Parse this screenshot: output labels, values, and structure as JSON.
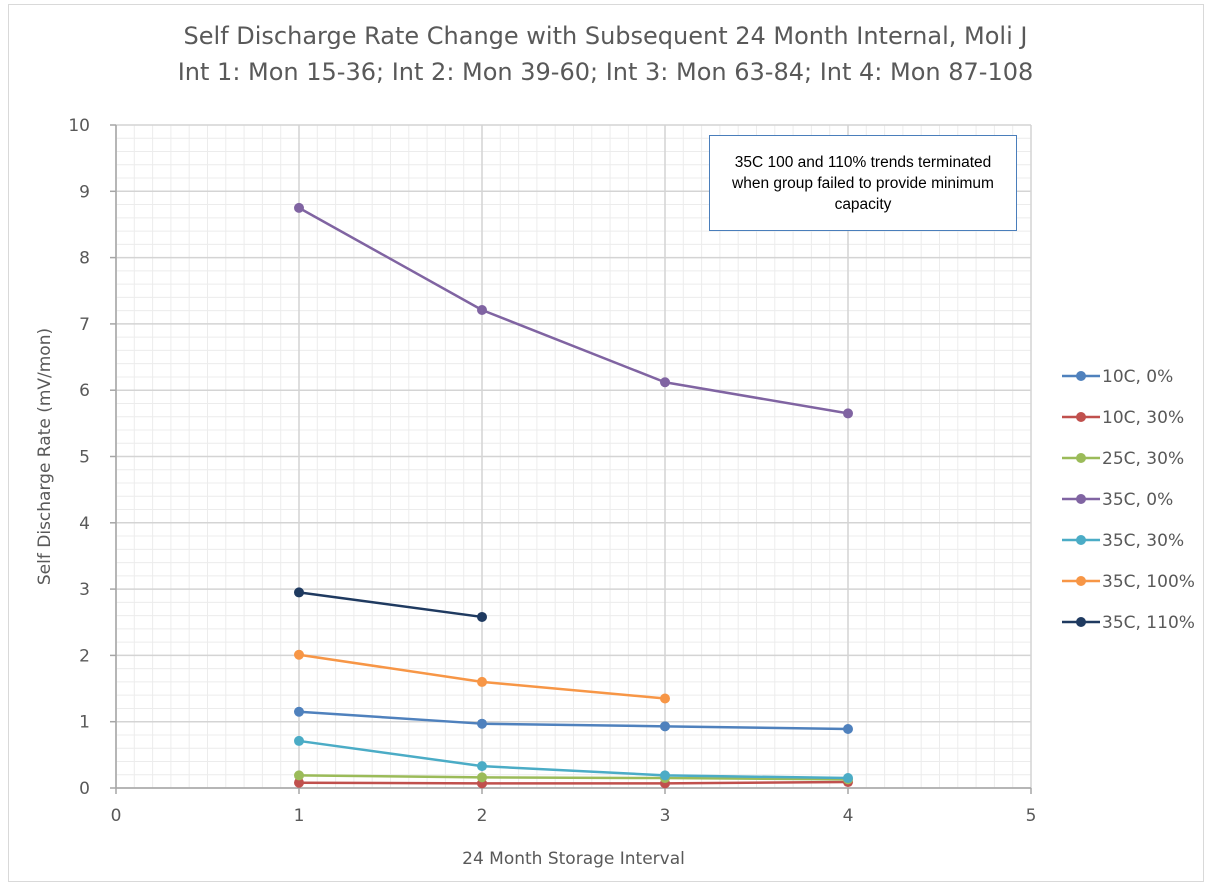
{
  "chart_data": {
    "type": "scatter",
    "title": "Self Discharge Rate Change with Subsequent 24 Month Internal, Moli J",
    "subtitle": "Int 1: Mon 15-36; Int 2: Mon 39-60; Int 3: Mon 63-84; Int 4: Mon 87-108",
    "xlabel": "24 Month Storage Interval",
    "ylabel": "Self Discharge Rate (mV/mon)",
    "xlim": [
      0,
      5
    ],
    "ylim": [
      0,
      10
    ],
    "xticks": [
      0,
      1,
      2,
      3,
      4,
      5
    ],
    "yticks": [
      0,
      1,
      2,
      3,
      4,
      5,
      6,
      7,
      8,
      9,
      10
    ],
    "grid": true,
    "legend_position": "right",
    "annotation": "35C 100 and 110% trends terminated when group failed to provide minimum capacity",
    "series": [
      {
        "name": "10C, 0%",
        "color": "#4f81bd",
        "x": [
          1,
          2,
          3,
          4
        ],
        "y": [
          1.15,
          0.97,
          0.93,
          0.89
        ]
      },
      {
        "name": "10C, 30%",
        "color": "#c0504d",
        "x": [
          1,
          2,
          3,
          4
        ],
        "y": [
          0.08,
          0.07,
          0.07,
          0.09
        ]
      },
      {
        "name": "25C, 30%",
        "color": "#9bbb59",
        "x": [
          1,
          2,
          3,
          4
        ],
        "y": [
          0.19,
          0.16,
          0.15,
          0.13
        ]
      },
      {
        "name": "35C, 0%",
        "color": "#8064a2",
        "x": [
          1,
          2,
          3,
          4
        ],
        "y": [
          8.75,
          7.21,
          6.12,
          5.65
        ]
      },
      {
        "name": "35C, 30%",
        "color": "#4bacc6",
        "x": [
          1,
          2,
          3,
          4
        ],
        "y": [
          0.71,
          0.33,
          0.19,
          0.15
        ]
      },
      {
        "name": "35C, 100%",
        "color": "#f79646",
        "x": [
          1,
          2,
          3
        ],
        "y": [
          2.01,
          1.6,
          1.35
        ]
      },
      {
        "name": "35C, 110%",
        "color": "#1f3a60",
        "x": [
          1,
          2
        ],
        "y": [
          2.95,
          2.58
        ]
      }
    ]
  }
}
